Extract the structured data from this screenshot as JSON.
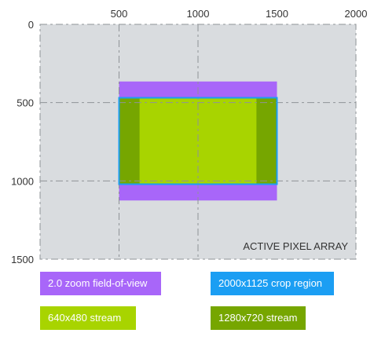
{
  "x_ticks": [
    "500",
    "1000",
    "1500",
    "2000"
  ],
  "y_ticks": [
    "0",
    "500",
    "1000",
    "1500"
  ],
  "sensor": {
    "label": "ACTIVE PIXEL ARRAY",
    "width": 2000,
    "height": 1500
  },
  "regions": [
    {
      "key": "zoom_fov",
      "legend": "2.0 zoom field-of-view",
      "color": "#a866f9",
      "x": [
        500,
        1500
      ],
      "y": [
        365,
        1125
      ]
    },
    {
      "key": "crop",
      "legend": "2000x1125 crop region",
      "color": "#1b9ef3",
      "x": [
        500,
        1500
      ],
      "y": [
        469,
        1021
      ]
    },
    {
      "key": "s1280",
      "legend": "1280x720 stream",
      "color": "#76a600",
      "x": [
        500,
        1500
      ],
      "y": [
        469,
        1021
      ]
    },
    {
      "key": "s640",
      "legend": "640x480 stream",
      "color": "#a8d400",
      "x": [
        630,
        1370
      ],
      "y": [
        469,
        1021
      ]
    }
  ],
  "colors": {
    "grid_bg": "#d9dcdf",
    "grid_line": "#8f9397",
    "text": "#333333"
  }
}
